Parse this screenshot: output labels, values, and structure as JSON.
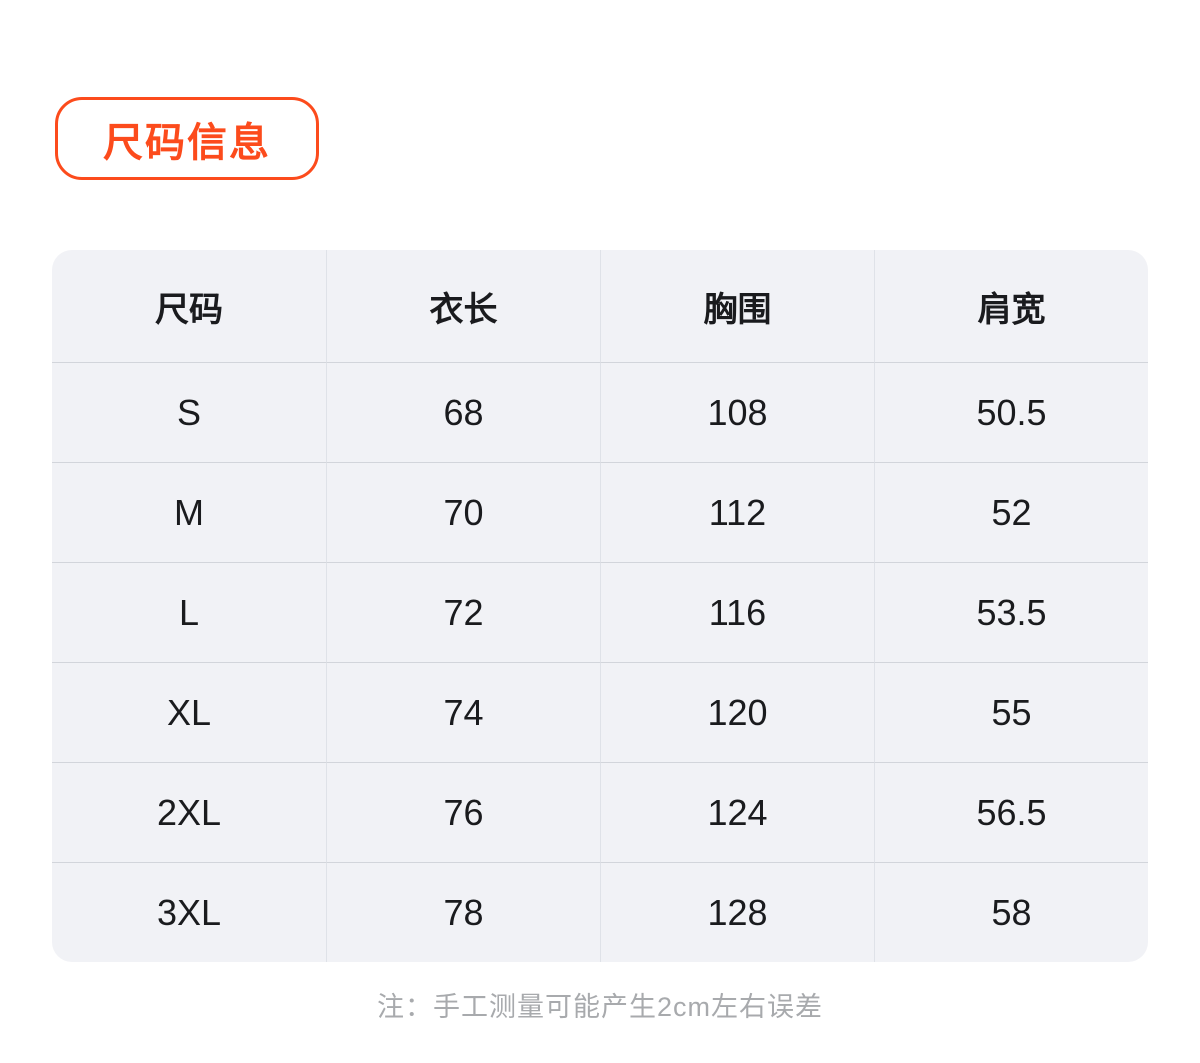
{
  "colors": {
    "accent_orange": "#FC4B1C",
    "table_background": "#F1F2F6",
    "divider_horizontal": "#D2D5DB",
    "divider_vertical": "#DFE2E8",
    "body_text": "#1A1B1E",
    "note_text": "#A8AAAD"
  },
  "badge": {
    "label": "尺码信息"
  },
  "size_table": {
    "headers": [
      "尺码",
      "衣长",
      "胸围",
      "肩宽"
    ],
    "rows": [
      [
        "S",
        "68",
        "108",
        "50.5"
      ],
      [
        "M",
        "70",
        "112",
        "52"
      ],
      [
        "L",
        "72",
        "116",
        "53.5"
      ],
      [
        "XL",
        "74",
        "120",
        "55"
      ],
      [
        "2XL",
        "76",
        "124",
        "56.5"
      ],
      [
        "3XL",
        "78",
        "128",
        "58"
      ]
    ]
  },
  "note": {
    "text": "注：手工测量可能产生2cm左右误差"
  }
}
